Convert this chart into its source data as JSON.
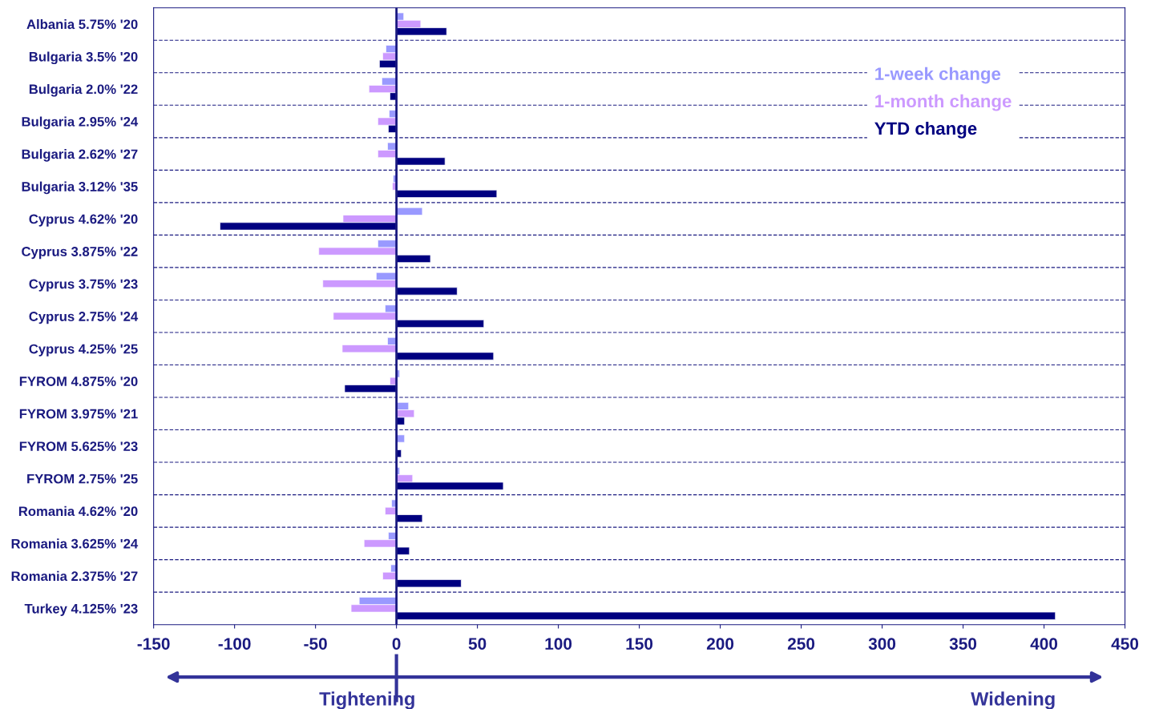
{
  "chart_data": {
    "type": "bar",
    "orientation": "horizontal",
    "categories": [
      "Albania 5.75% '20",
      "Bulgaria 3.5% '20",
      "Bulgaria 2.0% '22",
      "Bulgaria 2.95% '24",
      "Bulgaria 2.62% '27",
      "Bulgaria 3.12% '35",
      "Cyprus 4.62% '20",
      "Cyprus 3.875% '22",
      "Cyprus 3.75% '23",
      "Cyprus 2.75% '24",
      "Cyprus 4.25% '25",
      "FYROM 4.875% '20",
      "FYROM 3.975% '21",
      "FYROM 5.625% '23",
      "FYROM 2.75% '25",
      "Romania 4.62% '20",
      "Romania 3.625% '24",
      "Romania 2.375% '27",
      "Turkey 4.125% '23"
    ],
    "series": [
      {
        "name": "1-week change",
        "color": "#9999ff",
        "values": [
          4.5,
          -6.5,
          -9,
          -4.5,
          -5.5,
          -2,
          16,
          -11.5,
          -12.5,
          -7,
          -5.5,
          2,
          7.5,
          5,
          2,
          -3,
          -5,
          -3.5,
          -23
        ]
      },
      {
        "name": "1-month change",
        "color": "#cc99ff",
        "values": [
          15,
          -8.5,
          -17,
          -11.5,
          -11.5,
          -2.5,
          -33,
          -48,
          -45.5,
          -39,
          -33.5,
          -4,
          11,
          null,
          10,
          -7,
          -20,
          -8.5,
          -28
        ]
      },
      {
        "name": "YTD change",
        "color": "#000080",
        "values": [
          31,
          -10.5,
          -4,
          -5,
          30,
          62,
          -109,
          21,
          37.5,
          54,
          60,
          -32,
          5,
          3,
          66,
          16,
          8,
          40,
          407
        ]
      }
    ],
    "xlim": [
      -150,
      450
    ],
    "xticks": [
      -150,
      -100,
      -50,
      0,
      50,
      100,
      150,
      200,
      250,
      300,
      350,
      400,
      450
    ],
    "ref_lines": [
      {
        "axis": "x",
        "value": 0,
        "color": "#1a1a80"
      }
    ],
    "grid": "y",
    "legend": "top right",
    "annotations": [
      "Tightening",
      "Widening"
    ]
  }
}
